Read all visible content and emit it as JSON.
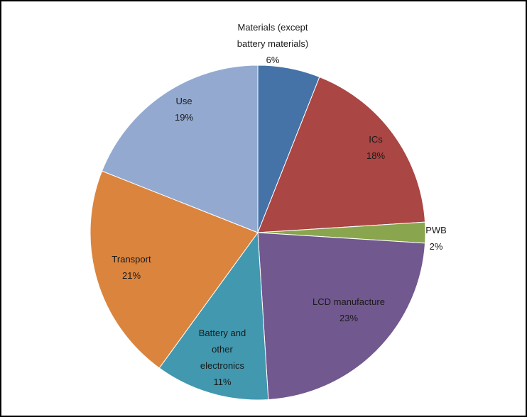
{
  "chart_data": {
    "type": "pie",
    "title": "",
    "slices": [
      {
        "label_lines": [
          "Materials (except",
          "battery materials)"
        ],
        "label": "Materials (except battery materials)",
        "value": 6,
        "value_text": "6%",
        "color": "#4572A7"
      },
      {
        "label_lines": [
          "ICs"
        ],
        "label": "ICs",
        "value": 18,
        "value_text": "18%",
        "color": "#AA4643"
      },
      {
        "label_lines": [
          "PWB"
        ],
        "label": "PWB",
        "value": 2,
        "value_text": "2%",
        "color": "#89A54E"
      },
      {
        "label_lines": [
          "LCD manufacture"
        ],
        "label": "LCD manufacture",
        "value": 23,
        "value_text": "23%",
        "color": "#71588F"
      },
      {
        "label_lines": [
          "Battery and",
          "other",
          "electronics"
        ],
        "label": "Battery and other electronics",
        "value": 11,
        "value_text": "11%",
        "color": "#4198AF"
      },
      {
        "label_lines": [
          "Transport"
        ],
        "label": "Transport",
        "value": 21,
        "value_text": "21%",
        "color": "#DB843D"
      },
      {
        "label_lines": [
          "Use"
        ],
        "label": "Use",
        "value": 19,
        "value_text": "19%",
        "color": "#93A9CF"
      }
    ]
  }
}
